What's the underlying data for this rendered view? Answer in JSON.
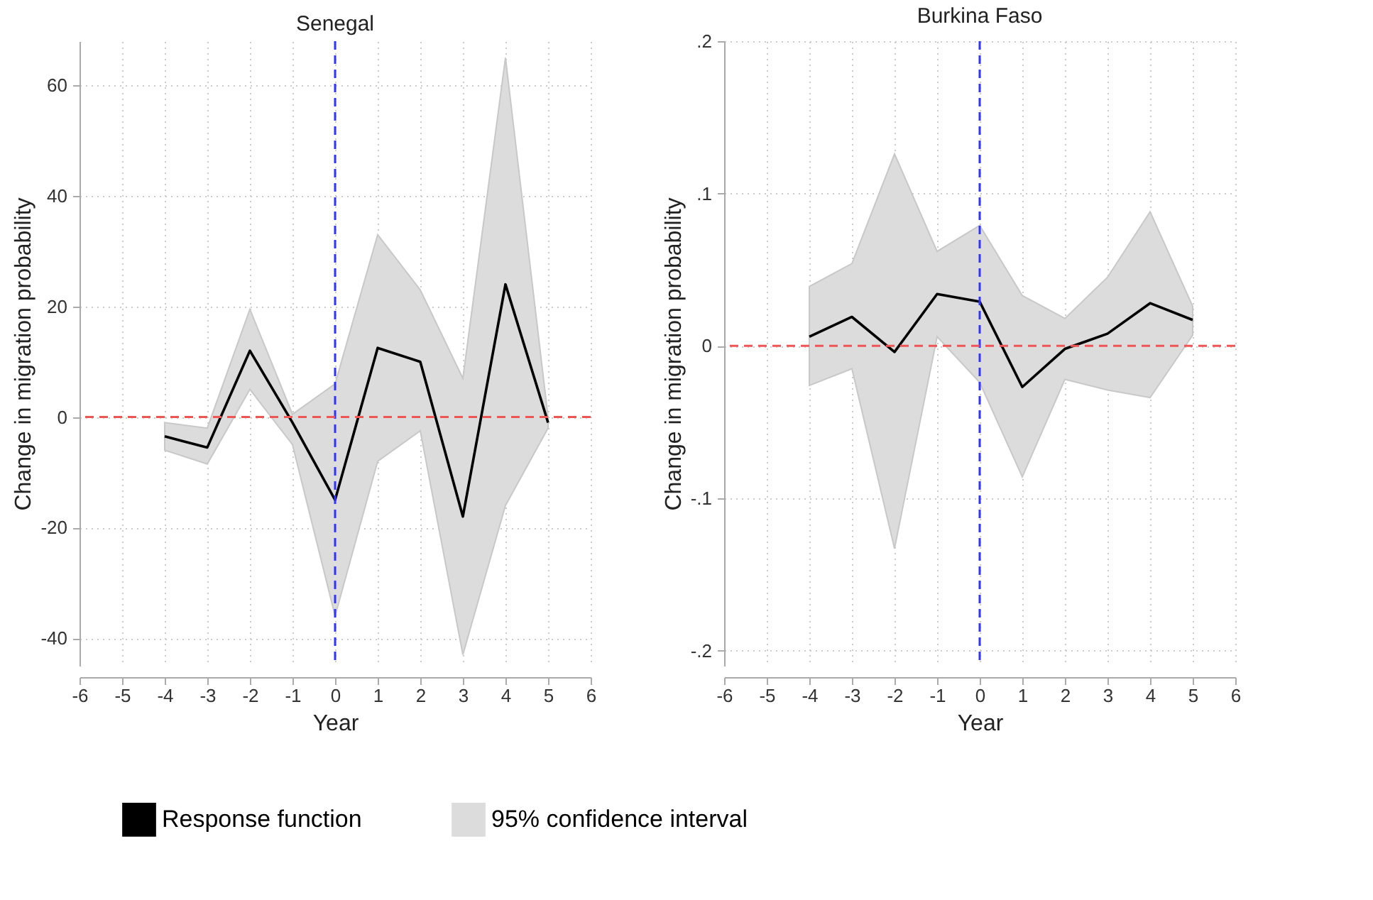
{
  "chart_data": [
    {
      "type": "line",
      "title": "Senegal",
      "xlabel": "Year",
      "ylabel": "Change in migration probability",
      "x": [
        -4,
        -3,
        -2,
        -1,
        0,
        1,
        2,
        3,
        4,
        5
      ],
      "series": [
        {
          "name": "Response function",
          "type": "line",
          "color": "#000000",
          "values": [
            -3.5,
            -5.5,
            12,
            -1,
            -15,
            12.5,
            10,
            -18,
            24,
            -1
          ],
          "lower": [
            -6,
            -8.5,
            5,
            -5,
            -36,
            -8,
            -2.5,
            -43,
            -16,
            -2
          ],
          "upper": [
            -1,
            -2,
            19.5,
            0.5,
            6,
            33,
            23,
            7,
            65,
            0
          ]
        }
      ],
      "annotations": [
        "95% confidence interval"
      ],
      "xlim": [
        -6,
        6
      ],
      "xticks": [
        -6,
        -5,
        -4,
        -3,
        -2,
        -1,
        0,
        1,
        2,
        3,
        4,
        5,
        6
      ],
      "ylim": [
        -45,
        68
      ],
      "yticks": [
        -40,
        -20,
        0,
        20,
        40,
        60
      ],
      "ref_lines": [
        {
          "axis": "x",
          "value": 0,
          "color": "#3333ff",
          "line_style": "dashed"
        },
        {
          "axis": "y",
          "value": 0,
          "color": "#f05555",
          "line_style": "dashed"
        }
      ],
      "grid": true,
      "legend": "bottom",
      "line_style": "solid"
    },
    {
      "type": "line",
      "title": "Burkina Faso",
      "xlabel": "Year",
      "ylabel": "Change in migration probability",
      "x": [
        -4,
        -3,
        -2,
        -1,
        0,
        1,
        2,
        3,
        4,
        5
      ],
      "series": [
        {
          "name": "Response function",
          "type": "line",
          "color": "#000000",
          "values": [
            0.006,
            0.019,
            -0.004,
            0.034,
            0.029,
            -0.027,
            -0.002,
            0.008,
            0.028,
            0.017
          ],
          "lower": [
            -0.026,
            -0.015,
            -0.133,
            0.006,
            -0.024,
            -0.086,
            -0.022,
            -0.029,
            -0.034,
            0.007
          ],
          "upper": [
            0.039,
            0.054,
            0.126,
            0.062,
            0.079,
            0.033,
            0.018,
            0.045,
            0.088,
            0.026
          ]
        }
      ],
      "xlim": [
        -6,
        6
      ],
      "xticks": [
        -6,
        -5,
        -4,
        -3,
        -2,
        -1,
        0,
        1,
        2,
        3,
        4,
        5,
        6
      ],
      "ylim": [
        -0.21,
        0.2
      ],
      "yticks": [
        {
          "value": -0.2,
          "label": "-.2"
        },
        {
          "value": -0.1,
          "label": "-.1"
        },
        {
          "value": 0,
          "label": "0"
        },
        {
          "value": 0.1,
          "label": ".1"
        },
        {
          "value": 0.2,
          "label": ".2"
        }
      ],
      "ref_lines": [
        {
          "axis": "x",
          "value": 0,
          "color": "#3333ff",
          "line_style": "dashed"
        },
        {
          "axis": "y",
          "value": 0,
          "color": "#f05555",
          "line_style": "dashed"
        }
      ],
      "grid": true,
      "line_style": "solid"
    }
  ]
}
